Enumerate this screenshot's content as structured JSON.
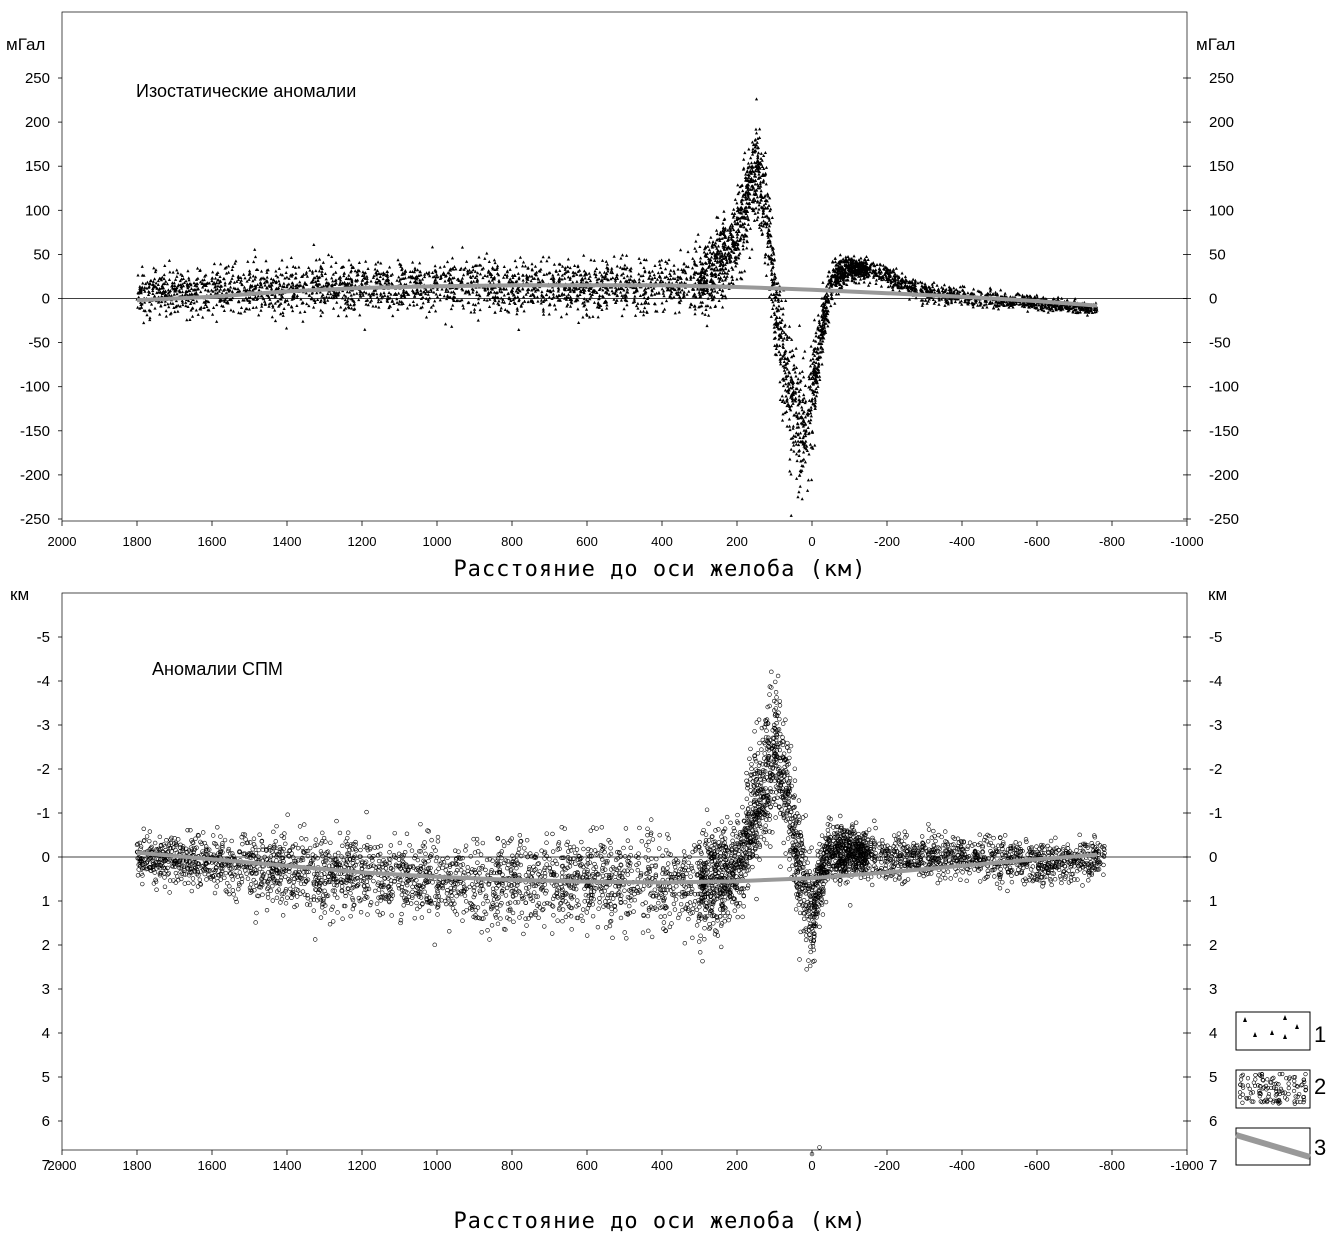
{
  "chart_data": [
    {
      "type": "scatter",
      "annotation": "Изостатические аномалии",
      "y_unit_left": "мГал",
      "y_unit_right": "мГал",
      "xlabel": "Расстояние до оси желоба (км)",
      "xlim": [
        2000,
        -1000
      ],
      "ylim": [
        -250,
        270
      ],
      "x_ticks": [
        "2000",
        "1800",
        "1600",
        "1400",
        "1200",
        "1000",
        "800",
        "600",
        "400",
        "200",
        "0",
        "-200",
        "-400",
        "-600",
        "-800",
        "-1000"
      ],
      "y_ticks": [
        "250",
        "200",
        "150",
        "100",
        "50",
        "0",
        "-50",
        "-100",
        "-150",
        "-200",
        "-250"
      ],
      "marker": "triangle",
      "scatter_envelope": {
        "x": [
          1800,
          1600,
          1400,
          1200,
          1000,
          800,
          600,
          400,
          300,
          250,
          200,
          150,
          120,
          100,
          60,
          30,
          0,
          -20,
          -50,
          -100,
          -150,
          -200,
          -250,
          -300,
          -400,
          -500,
          -600,
          -700,
          -760
        ],
        "center": [
          5,
          8,
          10,
          12,
          12,
          12,
          12,
          15,
          20,
          35,
          70,
          150,
          90,
          0,
          -100,
          -150,
          -120,
          -50,
          20,
          35,
          32,
          25,
          15,
          8,
          2,
          -2,
          -5,
          -10,
          -12
        ],
        "spread": [
          18,
          20,
          20,
          20,
          20,
          20,
          20,
          20,
          25,
          30,
          40,
          40,
          40,
          45,
          50,
          45,
          40,
          30,
          15,
          10,
          8,
          8,
          8,
          8,
          7,
          6,
          6,
          5,
          5
        ]
      },
      "trend_line": {
        "x": [
          1800,
          1600,
          1400,
          1200,
          1000,
          800,
          600,
          400,
          200,
          0,
          -200,
          -400,
          -600,
          -760
        ],
        "y": [
          -2,
          2,
          8,
          12,
          14,
          15,
          15,
          15,
          13,
          10,
          6,
          2,
          -3,
          -8
        ]
      }
    },
    {
      "type": "scatter",
      "annotation": "Аномалии СПМ",
      "y_unit_left": "км",
      "y_unit_right": "км",
      "xlabel": "Расстояние до оси желоба (км)",
      "xlim": [
        2000,
        -1000
      ],
      "ylim": [
        -6,
        7.2
      ],
      "y_inverted": true,
      "x_ticks": [
        "2000",
        "1800",
        "1600",
        "1400",
        "1200",
        "1000",
        "800",
        "600",
        "400",
        "200",
        "0",
        "-200",
        "-400",
        "-600",
        "-800",
        "-1000"
      ],
      "y_ticks": [
        "-5",
        "-4",
        "-3",
        "-2",
        "-1",
        "0",
        "1",
        "2",
        "3",
        "4",
        "5",
        "6",
        "7"
      ],
      "marker": "circle",
      "scatter_envelope": {
        "x": [
          1800,
          1600,
          1400,
          1200,
          1000,
          800,
          600,
          400,
          300,
          200,
          150,
          100,
          80,
          50,
          20,
          0,
          -20,
          -50,
          -100,
          -200,
          -300,
          -400,
          -500,
          -600,
          -700,
          -780
        ],
        "center": [
          0.0,
          0.1,
          0.35,
          0.4,
          0.5,
          0.55,
          0.5,
          0.6,
          0.7,
          0.3,
          -1.0,
          -2.5,
          -2.0,
          -0.5,
          0.8,
          1.3,
          0.5,
          -0.1,
          -0.1,
          0.0,
          0.0,
          0.0,
          0.1,
          0.1,
          0.1,
          0.0
        ],
        "spread": [
          0.35,
          0.45,
          0.6,
          0.6,
          0.65,
          0.7,
          0.7,
          0.75,
          0.8,
          0.8,
          1.0,
          1.2,
          1.0,
          0.9,
          0.8,
          0.7,
          0.6,
          0.4,
          0.4,
          0.35,
          0.35,
          0.35,
          0.35,
          0.35,
          0.3,
          0.3
        ]
      },
      "outliers": [
        {
          "x": 0,
          "y": 6.75
        },
        {
          "x": -20,
          "y": 6.6
        }
      ],
      "trend_line": {
        "x": [
          1800,
          1600,
          1400,
          1200,
          1000,
          800,
          600,
          400,
          200,
          0,
          -200,
          -400,
          -600,
          -760
        ],
        "y": [
          -0.1,
          0.05,
          0.2,
          0.35,
          0.45,
          0.52,
          0.56,
          0.58,
          0.55,
          0.48,
          0.35,
          0.2,
          0.05,
          -0.05
        ]
      }
    }
  ],
  "legend": [
    {
      "label": "1",
      "icon": "triangles-marker"
    },
    {
      "label": "2",
      "icon": "circles-marker"
    },
    {
      "label": "3",
      "icon": "grey-trend-line"
    }
  ],
  "colors": {
    "points": "#000000",
    "trend": "#999999",
    "axis": "#000000"
  }
}
